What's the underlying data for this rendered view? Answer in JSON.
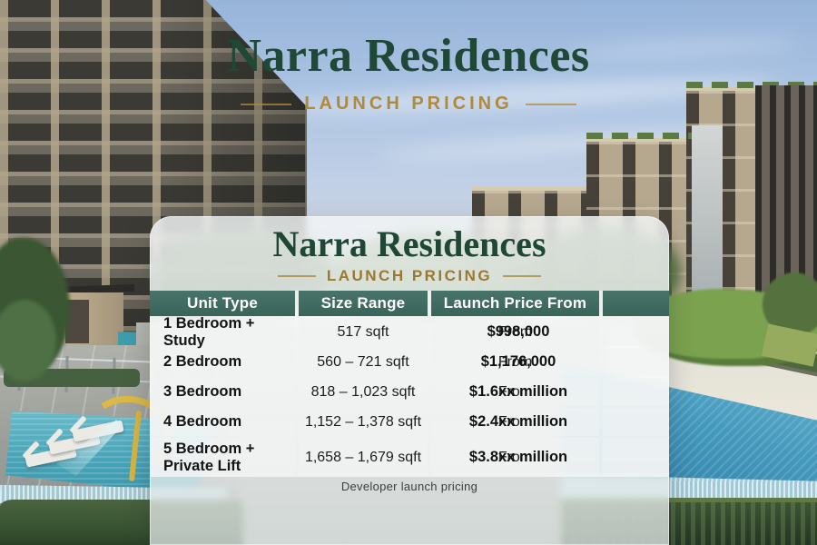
{
  "header": {
    "title": "Narra Residences",
    "subtitle": "LAUNCH PRICING"
  },
  "card": {
    "title": "Narra Residences",
    "subtitle": "LAUNCH PRICING",
    "footnote": "Developer launch pricing",
    "table": {
      "columns": [
        "Unit Type",
        "Size Range",
        "Launch Price From",
        ""
      ],
      "rows": [
        {
          "unit": "1 Bedroom + Study",
          "size": "517 sqft",
          "price_prefix": "From",
          "price": "$998,000"
        },
        {
          "unit": "2 Bedroom",
          "size": "560 – 721 sqft",
          "price_prefix": "From",
          "price": "$1,176,000"
        },
        {
          "unit": "3 Bedroom",
          "size": "818 – 1,023 sqft",
          "price_prefix": "From",
          "price": "$1.6xx million"
        },
        {
          "unit": "4 Bedroom",
          "size": "1,152 – 1,378 sqft",
          "price_prefix": "From",
          "price": "$2.4xx million"
        },
        {
          "unit": "5 Bedroom + Private Lift",
          "size": "1,658 – 1,679 sqft",
          "price_prefix": "From",
          "price": "$3.8xx million"
        }
      ]
    }
  },
  "colors": {
    "title_green": "#1f4837",
    "gold_accent": "#b08a3c",
    "table_header_bg": "#406a60",
    "table_header_text": "#ffffff"
  }
}
